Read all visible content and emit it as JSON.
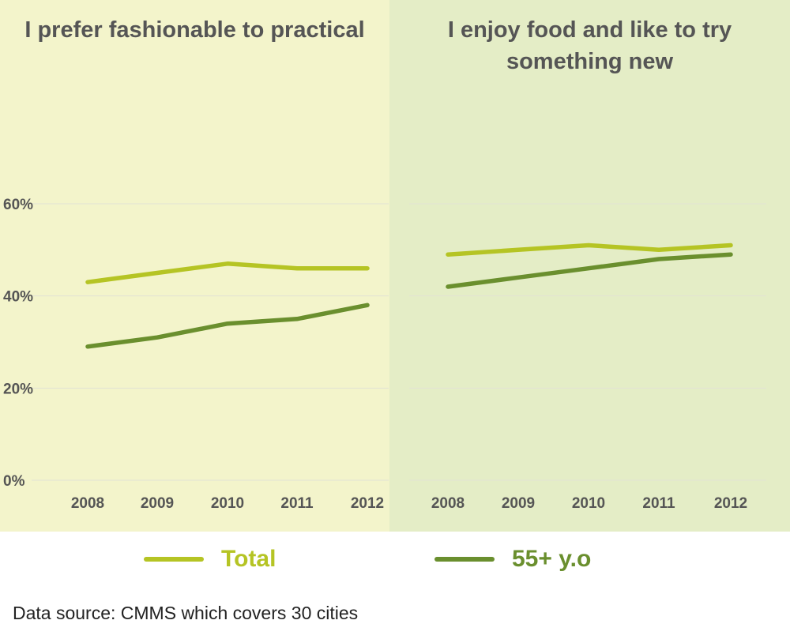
{
  "colors": {
    "total": "#b5c424",
    "older": "#6a8f2e",
    "panel_left_bg": "#f3f4cb",
    "panel_right_bg": "#e4edc6",
    "gridline": "#e2e2d4",
    "text": "#555555"
  },
  "legend": {
    "total_label": "Total",
    "older_label": "55+ y.o"
  },
  "footnote": "Data source: CMMS which covers 30 cities",
  "chart_data": [
    {
      "type": "line",
      "title": "I prefer fashionable to practical",
      "categories": [
        "2008",
        "2009",
        "2010",
        "2011",
        "2012"
      ],
      "y_ticks": [
        "0%",
        "20%",
        "40%",
        "60%"
      ],
      "ylim": [
        0,
        60
      ],
      "grid": true,
      "legend": "bottom",
      "series": [
        {
          "name": "Total",
          "values": [
            43,
            45,
            47,
            46,
            46
          ]
        },
        {
          "name": "55+ y.o",
          "values": [
            29,
            31,
            34,
            35,
            38
          ]
        }
      ]
    },
    {
      "type": "line",
      "title": "I enjoy food and like to try\nsomething new",
      "categories": [
        "2008",
        "2009",
        "2010",
        "2011",
        "2012"
      ],
      "ylim": [
        0,
        60
      ],
      "grid": true,
      "legend": "bottom",
      "series": [
        {
          "name": "Total",
          "values": [
            49,
            50,
            51,
            50,
            51
          ]
        },
        {
          "name": "55+ y.o",
          "values": [
            42,
            44,
            46,
            48,
            49
          ]
        }
      ]
    }
  ]
}
